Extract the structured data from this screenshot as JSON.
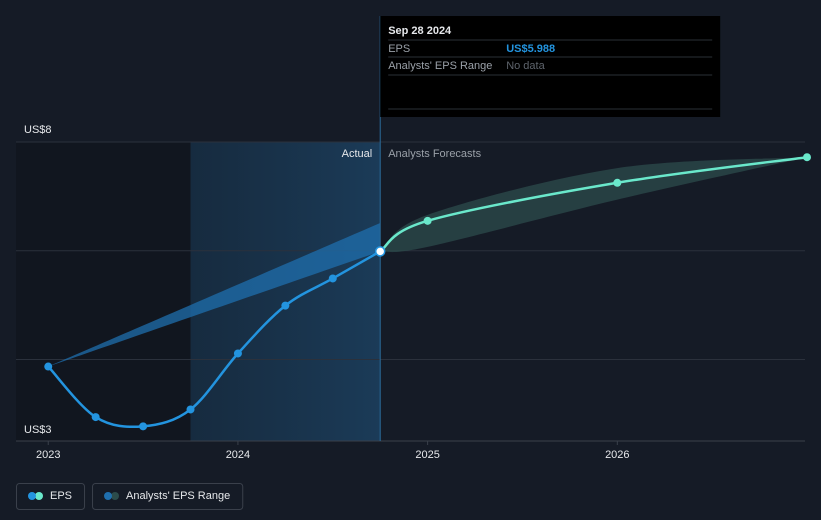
{
  "chart_data": {
    "type": "line",
    "xlim": [
      2022.83,
      2027.0
    ],
    "xticks": [
      2023,
      2024,
      2025,
      2026
    ],
    "ylim": [
      2.5,
      8
    ],
    "yticks": [
      {
        "value": 8,
        "label": "US$8"
      },
      {
        "value": 3,
        "label": "US$3"
      }
    ],
    "gridlines": [
      8,
      6,
      4
    ],
    "section_labels": [
      "Actual",
      "Analysts Forecasts"
    ],
    "series": [
      {
        "name": "EPS",
        "color": "#2394df",
        "x": [
          2023.0,
          2023.25,
          2023.5,
          2023.75,
          2024.0,
          2024.25,
          2024.5,
          2024.75
        ],
        "values": [
          3.87,
          2.94,
          2.77,
          3.08,
          4.11,
          4.99,
          5.49,
          5.988
        ]
      },
      {
        "color": "#6ae8cb",
        "x": [
          2024.75,
          2025.0,
          2026.0,
          2027.0
        ],
        "values": [
          5.988,
          6.55,
          7.25,
          7.72
        ]
      }
    ],
    "bands": [
      {
        "color": "#1f6fae",
        "x": [
          2023.0,
          2024.75
        ],
        "low": [
          3.87,
          5.988
        ],
        "high": [
          3.87,
          6.51
        ]
      },
      {
        "color": "#2c4c4c",
        "x": [
          2024.75,
          2025.0,
          2026.0,
          2027.0
        ],
        "low": [
          5.988,
          6.07,
          6.94,
          7.72
        ],
        "high": [
          5.988,
          6.66,
          7.52,
          7.72
        ]
      }
    ],
    "legend": [
      {
        "name": "EPS",
        "color": "#2394df",
        "color2": "#6ae8cb"
      },
      {
        "name": "Analysts' EPS Range",
        "color": "#1f6fae",
        "color2": "#2c4c4c"
      }
    ],
    "tooltip": {
      "date": "Sep 28 2024",
      "x": 2024.75,
      "rows": [
        {
          "label": "EPS",
          "value": 5.988,
          "value_label": "US$5.988"
        },
        {
          "label": "Analysts' EPS Range",
          "text": "No data"
        }
      ]
    }
  }
}
